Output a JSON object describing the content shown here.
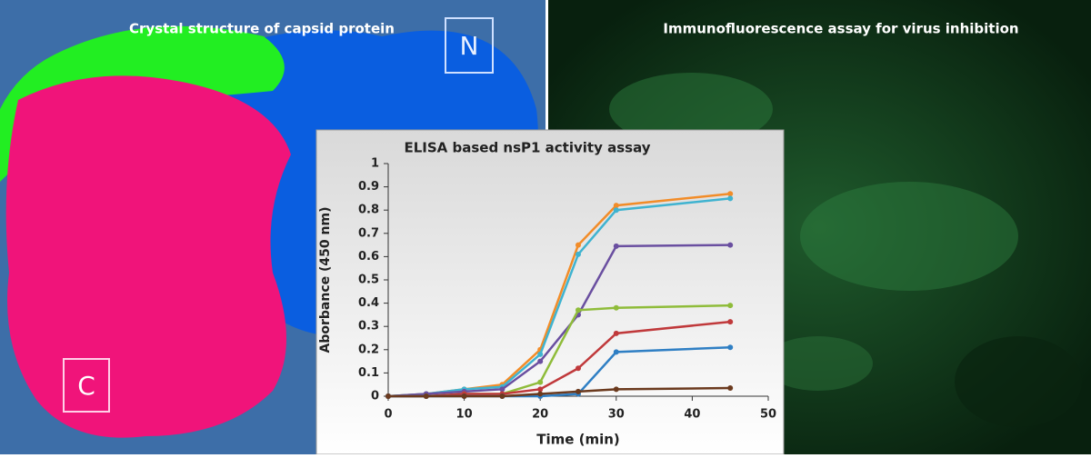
{
  "panels": {
    "left": {
      "title": "Crystal structure of capsid protein",
      "labels": [
        "N",
        "C"
      ]
    },
    "right": {
      "title": "Immunofluorescence assay for virus inhibition"
    }
  },
  "chart_data": {
    "type": "line",
    "title": "ELISA based nsP1 activity assay",
    "x_label": "Time (min)",
    "y_label": "Aborbance (450 nm)",
    "x": [
      0,
      5,
      10,
      15,
      20,
      25,
      30,
      45
    ],
    "series": [
      {
        "color": "#f28c28",
        "values": [
          0,
          0.01,
          0.03,
          0.05,
          0.2,
          0.65,
          0.82,
          0.87
        ]
      },
      {
        "color": "#3fb3d0",
        "values": [
          0,
          0.01,
          0.03,
          0.04,
          0.18,
          0.61,
          0.8,
          0.85
        ]
      },
      {
        "color": "#6a4fa0",
        "values": [
          0,
          0.01,
          0.02,
          0.03,
          0.15,
          0.35,
          0.645,
          0.65
        ]
      },
      {
        "color": "#8fbc3a",
        "values": [
          0,
          0,
          0.01,
          0.01,
          0.06,
          0.37,
          0.38,
          0.39
        ]
      },
      {
        "color": "#c0393b",
        "values": [
          0,
          0,
          0.01,
          0.01,
          0.03,
          0.12,
          0.27,
          0.32
        ]
      },
      {
        "color": "#2f7fc4",
        "values": [
          0,
          0,
          0,
          0,
          0,
          0.01,
          0.19,
          0.21
        ]
      },
      {
        "color": "#6b3a1e",
        "values": [
          0,
          0,
          0,
          0,
          0.01,
          0.02,
          0.03,
          0.035
        ]
      }
    ],
    "xlim": [
      0,
      50
    ],
    "xticks": [
      0,
      10,
      20,
      30,
      40,
      50
    ],
    "ylim": [
      0,
      1
    ],
    "yticks": [
      0,
      0.1,
      0.2,
      0.3,
      0.4,
      0.5,
      0.6,
      0.7,
      0.8,
      0.9,
      1
    ]
  }
}
